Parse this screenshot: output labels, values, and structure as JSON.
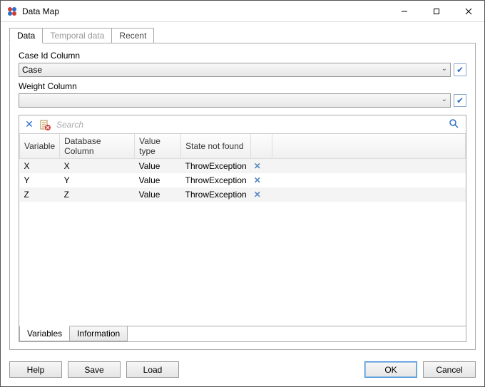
{
  "window": {
    "title": "Data Map"
  },
  "tabs_top": [
    {
      "label": "Data",
      "active": true
    },
    {
      "label": "Temporal data",
      "disabled": true
    },
    {
      "label": "Recent"
    }
  ],
  "fields": {
    "case_id_label": "Case Id Column",
    "case_id_value": "Case",
    "weight_label": "Weight Column",
    "weight_value": ""
  },
  "search": {
    "placeholder": "Search"
  },
  "table": {
    "columns": [
      "Variable",
      "Database Column",
      "Value type",
      "State not found",
      ""
    ],
    "col_widths": [
      "55px",
      "105px",
      "65px",
      "95px",
      "30px"
    ],
    "rows": [
      {
        "variable": "X",
        "db": "X",
        "vtype": "Value",
        "snf": "ThrowException"
      },
      {
        "variable": "Y",
        "db": "Y",
        "vtype": "Value",
        "snf": "ThrowException"
      },
      {
        "variable": "Z",
        "db": "Z",
        "vtype": "Value",
        "snf": "ThrowException"
      }
    ]
  },
  "tabs_bottom": [
    {
      "label": "Variables",
      "active": true
    },
    {
      "label": "Information"
    }
  ],
  "buttons": {
    "help": "Help",
    "save": "Save",
    "load": "Load",
    "ok": "OK",
    "cancel": "Cancel"
  },
  "colors": {
    "accent": "#2a6ec5",
    "border": "#aaaaaa",
    "row_alt": "#f4f4f4"
  }
}
